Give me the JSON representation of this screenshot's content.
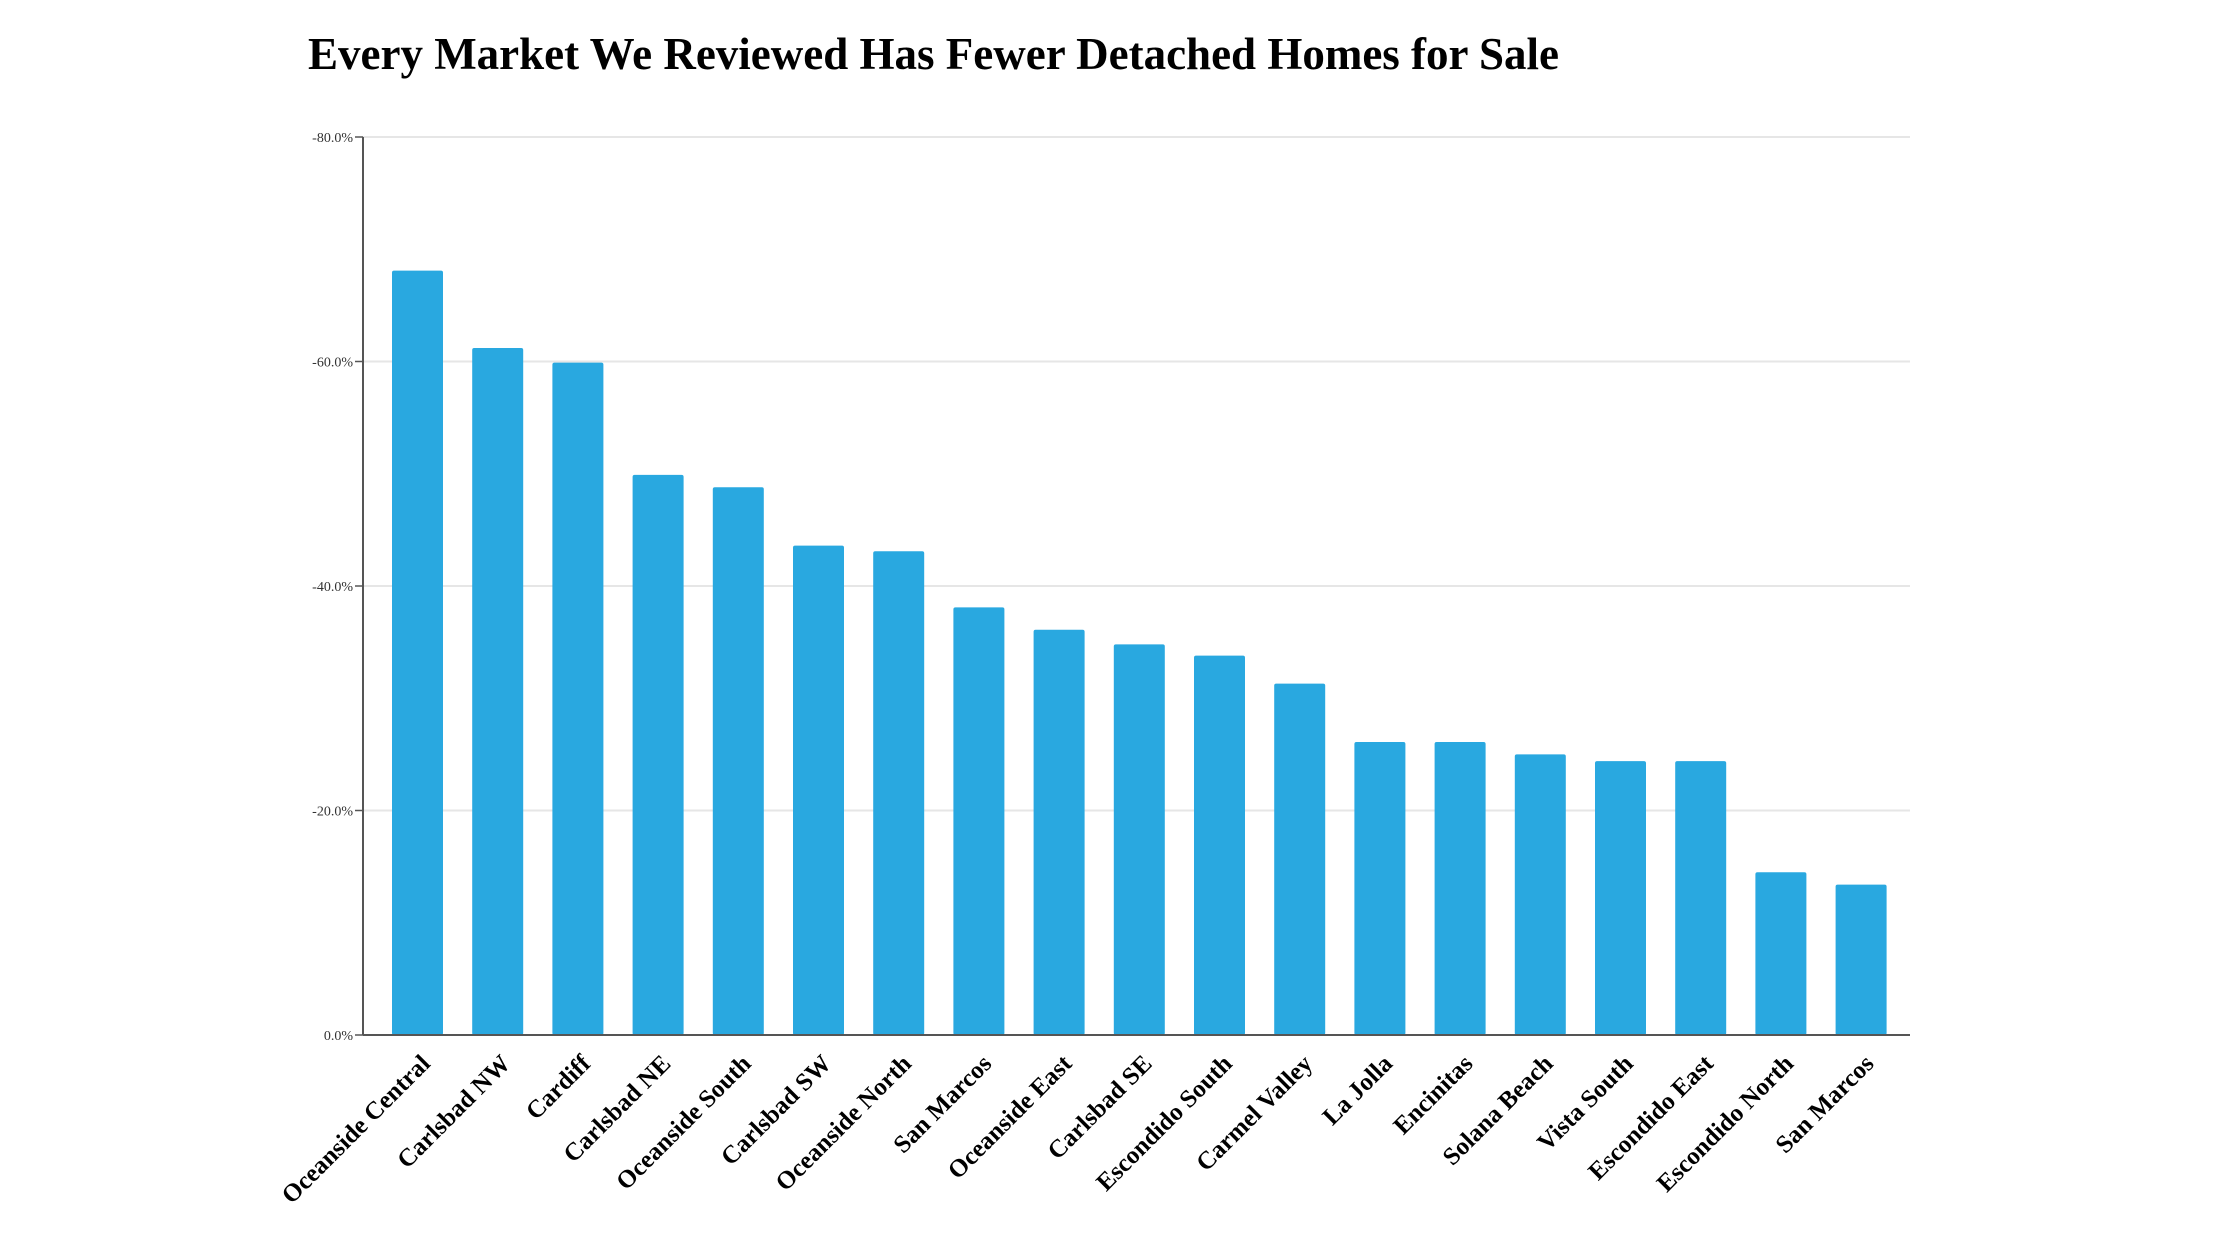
{
  "chart_data": {
    "type": "bar",
    "title": "Every Market We Reviewed Has Fewer Detached Homes for Sale",
    "xlabel": "",
    "ylabel": "",
    "categories": [
      "Oceanside Central",
      "Carlsbad NW",
      "Cardiff",
      "Carlsbad NE",
      "Oceanside South",
      "Carlsbad SW",
      "Oceanside North",
      "San Marcos",
      "Oceanside East",
      "Carlsbad SE",
      "Escondido South",
      "Carmel Valley",
      "La Jolla",
      "Encinitas",
      "Solana Beach",
      "Vista South",
      "Escondido East",
      "Escondido North",
      "San Marcos"
    ],
    "values": [
      -68.1,
      -61.2,
      -59.9,
      -49.9,
      -48.8,
      -43.6,
      -43.1,
      -38.1,
      -36.1,
      -34.8,
      -33.8,
      -31.3,
      -26.1,
      -26.1,
      -25.0,
      -24.4,
      -24.4,
      -14.5,
      -13.4
    ],
    "ylim": [
      0,
      -80
    ],
    "yticks": [
      "0.0%",
      "-20.0%",
      "-40.0%",
      "-60.0%",
      "-80.0%"
    ],
    "ytick_values": [
      0,
      -20,
      -40,
      -60,
      -80
    ],
    "grid": true,
    "bar_color": "#29a8e0",
    "grid_color": "#e6e6e6",
    "axis_color": "#555555"
  }
}
